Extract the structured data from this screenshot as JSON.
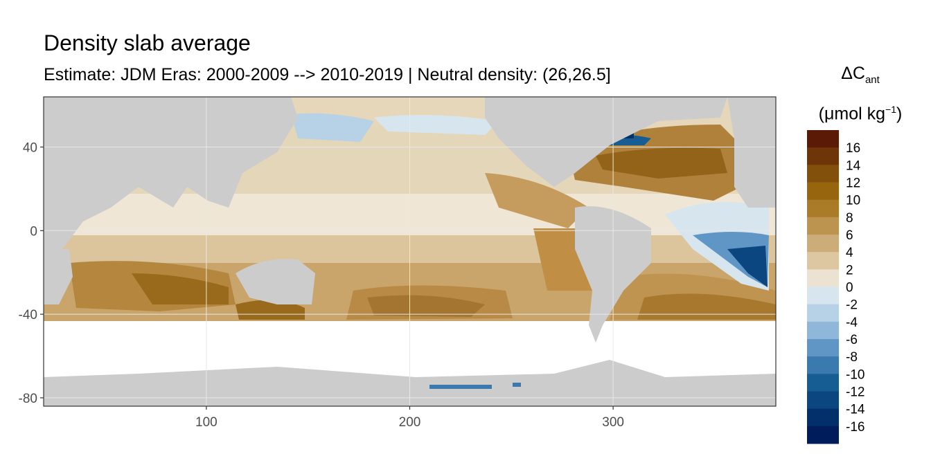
{
  "title": "Density slab average",
  "subtitle": "Estimate: JDM Eras: 2000-2009 --> 2010-2019 | Neutral density: (26,26.5]",
  "legend": {
    "symbol": "ΔC",
    "subscript": "ant",
    "unit_prefix": "(μmol kg",
    "unit_exponent": "−1",
    "unit_suffix": ")",
    "labels": [
      "16",
      "14",
      "12",
      "10",
      "8",
      "6",
      "4",
      "2",
      "0",
      "-2",
      "-4",
      "-6",
      "-8",
      "-10",
      "-12",
      "-14",
      "-16"
    ],
    "colors": [
      "#5a1a06",
      "#6e3608",
      "#83500b",
      "#98650f",
      "#ab7c28",
      "#bc9450",
      "#ccac78",
      "#dcc7a0",
      "#ebe2d1",
      "#d7e5ee",
      "#b7d2e6",
      "#8fb7d9",
      "#5f96c6",
      "#3b7aae",
      "#155d93",
      "#0b4680",
      "#03306a",
      "#011c5a"
    ]
  },
  "axes": {
    "x": {
      "ticks": [
        100,
        200,
        300
      ],
      "tick_labels": [
        "100",
        "200",
        "300"
      ],
      "range": [
        20,
        380
      ]
    },
    "y": {
      "ticks": [
        40,
        0,
        -40,
        -80
      ],
      "tick_labels": [
        "40",
        "0",
        "-40",
        "-80"
      ],
      "range": [
        -84,
        64
      ]
    }
  },
  "map": {
    "land_color": "#cccccc",
    "missing_color": "#ffffff",
    "grid": "on",
    "panel_border_color": "#333333"
  }
}
